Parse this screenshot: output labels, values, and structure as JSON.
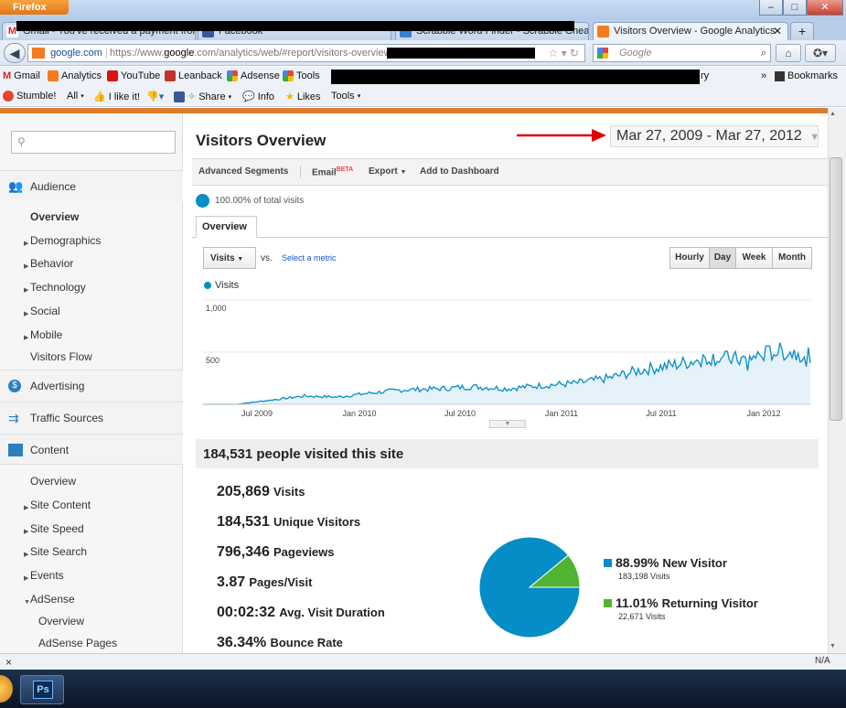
{
  "browser": {
    "menu_button": "Firefox",
    "window_controls": [
      "–",
      "□",
      "✕"
    ],
    "tabs": [
      {
        "label": "Gmail - You've received a payment from",
        "active": false
      },
      {
        "label": "Facebook",
        "active": false
      },
      {
        "label": "Scrabble Word Finder - Scrabble Chea...",
        "active": false
      },
      {
        "label": "Visitors Overview - Google Analytics",
        "active": true
      }
    ],
    "new_tab": "+",
    "url_domain": "google.com",
    "url_prefix": "https://www.",
    "url_host": "google",
    "url_rest": ".com/analytics/web/#report/visitors-overview/",
    "search_placeholder": "Google",
    "bookmarks": [
      "Gmail",
      "Analytics",
      "YouTube",
      "Leanback",
      "Adsense",
      "Tools",
      "ry"
    ],
    "bookmarks_overflow": "»",
    "bookmarks_menu": "Bookmarks",
    "toolbar2": [
      "Stumble!",
      "All",
      "I like it!",
      "Share",
      "Info",
      "Likes",
      "Tools"
    ],
    "status_close": "×",
    "status_right": "N/A"
  },
  "sidebar": {
    "search_placeholder": "",
    "sections": {
      "audience": "Audience",
      "advertising": "Advertising",
      "traffic": "Traffic Sources",
      "content": "Content"
    },
    "audience_items": [
      "Overview",
      "Demographics",
      "Behavior",
      "Technology",
      "Social",
      "Mobile",
      "Visitors Flow"
    ],
    "content_items": [
      "Overview",
      "Site Content",
      "Site Speed",
      "Site Search",
      "Events",
      "AdSense",
      "Overview",
      "AdSense Pages"
    ]
  },
  "main": {
    "title": "Visitors Overview",
    "date_range": "Mar 27, 2009 - Mar 27, 2012",
    "toolbar": {
      "segments": "Advanced Segments",
      "email": "Email",
      "beta": "BETA",
      "export": "Export",
      "dashboard": "Add to Dashboard"
    },
    "pct_total": "100.00% of total visits",
    "tab": "Overview",
    "metric": "Visits",
    "vs": "vs.",
    "select_metric": "Select a metric",
    "periods": [
      "Hourly",
      "Day",
      "Week",
      "Month"
    ],
    "selected_period": "Day",
    "summary": "184,531 people visited this site",
    "stats": [
      {
        "value": "205,869",
        "label": "Visits"
      },
      {
        "value": "184,531",
        "label": "Unique Visitors"
      },
      {
        "value": "796,346",
        "label": "Pageviews"
      },
      {
        "value": "3.87",
        "label": "Pages/Visit"
      },
      {
        "value": "00:02:32",
        "label": "Avg. Visit Duration"
      },
      {
        "value": "36.34%",
        "label": "Bounce Rate"
      }
    ],
    "pie_legend": [
      {
        "pct": "88.99%",
        "label": "New Visitor",
        "sub": "183,198 Visits",
        "color": "#058dc7"
      },
      {
        "pct": "11.01%",
        "label": "Returning Visitor",
        "sub": "22,671 Visits",
        "color": "#50b432"
      }
    ]
  },
  "chart_data": {
    "type": "area",
    "series": [
      {
        "name": "Visits"
      }
    ],
    "ylabel": "",
    "y_ticks": [
      "1,000",
      "500"
    ],
    "ylim": [
      0,
      1000
    ],
    "x_ticks": [
      "Jul 2009",
      "Jan 2010",
      "Jul 2010",
      "Jan 2011",
      "Jul 2011",
      "Jan 2012"
    ],
    "x": [
      "2009-03",
      "2009-05",
      "2009-07",
      "2009-09",
      "2009-11",
      "2010-01",
      "2010-03",
      "2010-05",
      "2010-07",
      "2010-09",
      "2010-11",
      "2011-01",
      "2011-03",
      "2011-05",
      "2011-07",
      "2011-09",
      "2011-11",
      "2012-01",
      "2012-03"
    ],
    "values": [
      0,
      0,
      40,
      80,
      70,
      110,
      140,
      150,
      170,
      150,
      180,
      200,
      250,
      330,
      380,
      450,
      430,
      510,
      480
    ],
    "color": "#058dc7",
    "pie": {
      "type": "pie",
      "labels": [
        "New Visitor",
        "Returning Visitor"
      ],
      "values": [
        88.99,
        11.01
      ],
      "colors": [
        "#058dc7",
        "#50b432"
      ]
    }
  },
  "annotation": {
    "color": "#e00000"
  }
}
